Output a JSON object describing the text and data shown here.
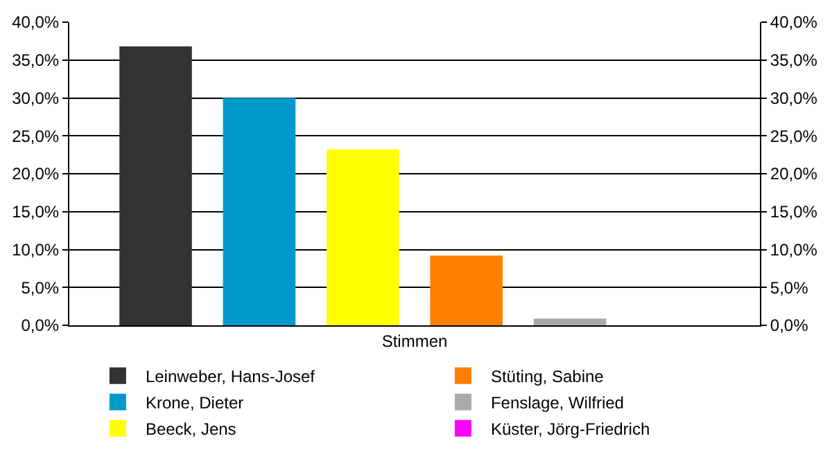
{
  "chart_data": {
    "type": "bar",
    "categories": [
      "Stimmen"
    ],
    "series": [
      {
        "name": "Leinweber, Hans-Josef",
        "color": "#333333",
        "values": [
          36.8
        ]
      },
      {
        "name": "Krone, Dieter",
        "color": "#0099cc",
        "values": [
          30.0
        ]
      },
      {
        "name": "Beeck, Jens",
        "color": "#ffff00",
        "values": [
          23.2
        ]
      },
      {
        "name": "Stüting, Sabine",
        "color": "#ff8000",
        "values": [
          9.2
        ]
      },
      {
        "name": "Fenslage, Wilfried",
        "color": "#aaaaaa",
        "values": [
          0.9
        ]
      },
      {
        "name": "Küster, Jörg-Friedrich",
        "color": "#ff00ff",
        "values": [
          0
        ]
      }
    ],
    "ylim": [
      0,
      40
    ],
    "yticks": [
      {
        "value": 0,
        "label": "0,0%"
      },
      {
        "value": 5,
        "label": "5,0%"
      },
      {
        "value": 10,
        "label": "10,0%"
      },
      {
        "value": 15,
        "label": "15,0%"
      },
      {
        "value": 20,
        "label": "20,0%"
      },
      {
        "value": 25,
        "label": "25,0%"
      },
      {
        "value": 30,
        "label": "30,0%"
      },
      {
        "value": 35,
        "label": "35,0%"
      },
      {
        "value": 40,
        "label": "40,0%"
      }
    ],
    "grid": "y",
    "legend": "bottom"
  }
}
